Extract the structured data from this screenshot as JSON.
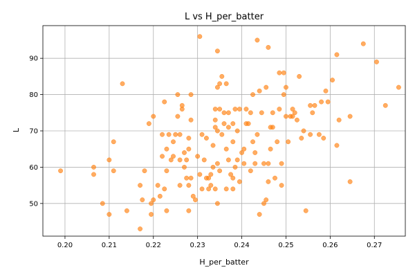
{
  "chart_data": {
    "type": "scatter",
    "title": "L vs H_per_batter",
    "xlabel": "H_per_batter",
    "ylabel": "L",
    "xlim": [
      0.195,
      0.277
    ],
    "ylim": [
      41,
      99
    ],
    "xticks": [
      "0.20",
      "0.21",
      "0.22",
      "0.23",
      "0.24",
      "0.25",
      "0.26",
      "0.27"
    ],
    "xtick_values": [
      0.2,
      0.21,
      0.22,
      0.23,
      0.24,
      0.25,
      0.26,
      0.27
    ],
    "yticks": [
      "50",
      "60",
      "70",
      "80",
      "90"
    ],
    "ytick_values": [
      50,
      60,
      70,
      80,
      90
    ],
    "grid": true,
    "marker_color": "#ff7f0e",
    "points": [
      [
        0.199,
        59
      ],
      [
        0.2065,
        58
      ],
      [
        0.2065,
        60
      ],
      [
        0.2085,
        50
      ],
      [
        0.21,
        47
      ],
      [
        0.21,
        62
      ],
      [
        0.211,
        59
      ],
      [
        0.211,
        67
      ],
      [
        0.213,
        83
      ],
      [
        0.214,
        48
      ],
      [
        0.217,
        43
      ],
      [
        0.217,
        55
      ],
      [
        0.2175,
        51
      ],
      [
        0.218,
        59
      ],
      [
        0.219,
        72
      ],
      [
        0.2195,
        47
      ],
      [
        0.2195,
        50
      ],
      [
        0.22,
        51
      ],
      [
        0.22,
        74
      ],
      [
        0.221,
        55
      ],
      [
        0.2215,
        52
      ],
      [
        0.222,
        63
      ],
      [
        0.222,
        69
      ],
      [
        0.2225,
        54
      ],
      [
        0.2225,
        78
      ],
      [
        0.223,
        48
      ],
      [
        0.223,
        65
      ],
      [
        0.223,
        59
      ],
      [
        0.2235,
        69
      ],
      [
        0.224,
        62
      ],
      [
        0.2245,
        63
      ],
      [
        0.2245,
        67
      ],
      [
        0.225,
        69
      ],
      [
        0.2255,
        74
      ],
      [
        0.2255,
        80
      ],
      [
        0.226,
        55
      ],
      [
        0.226,
        62
      ],
      [
        0.226,
        69
      ],
      [
        0.2265,
        76
      ],
      [
        0.2265,
        77
      ],
      [
        0.227,
        60
      ],
      [
        0.227,
        64
      ],
      [
        0.2275,
        57
      ],
      [
        0.2275,
        62
      ],
      [
        0.228,
        55
      ],
      [
        0.228,
        65
      ],
      [
        0.228,
        68
      ],
      [
        0.2285,
        80
      ],
      [
        0.228,
        48
      ],
      [
        0.229,
        52
      ],
      [
        0.2285,
        57
      ],
      [
        0.2285,
        73
      ],
      [
        0.2295,
        51
      ],
      [
        0.23,
        63
      ],
      [
        0.2305,
        96
      ],
      [
        0.231,
        54
      ],
      [
        0.2305,
        58
      ],
      [
        0.231,
        69
      ],
      [
        0.2315,
        62
      ],
      [
        0.232,
        57
      ],
      [
        0.232,
        68
      ],
      [
        0.2325,
        54
      ],
      [
        0.2325,
        57
      ],
      [
        0.233,
        55
      ],
      [
        0.233,
        58
      ],
      [
        0.2335,
        60
      ],
      [
        0.2335,
        66
      ],
      [
        0.234,
        54
      ],
      [
        0.234,
        71
      ],
      [
        0.234,
        73
      ],
      [
        0.234,
        76
      ],
      [
        0.2345,
        50
      ],
      [
        0.2345,
        61
      ],
      [
        0.2345,
        70
      ],
      [
        0.2345,
        82
      ],
      [
        0.2345,
        92
      ],
      [
        0.235,
        59
      ],
      [
        0.235,
        83
      ],
      [
        0.235,
        76
      ],
      [
        0.2355,
        69
      ],
      [
        0.236,
        72
      ],
      [
        0.236,
        75
      ],
      [
        0.2355,
        85
      ],
      [
        0.2365,
        54
      ],
      [
        0.237,
        62
      ],
      [
        0.2365,
        65
      ],
      [
        0.237,
        71
      ],
      [
        0.2365,
        83
      ],
      [
        0.237,
        75
      ],
      [
        0.2375,
        58
      ],
      [
        0.238,
        54
      ],
      [
        0.238,
        57
      ],
      [
        0.2385,
        60
      ],
      [
        0.238,
        67
      ],
      [
        0.238,
        72
      ],
      [
        0.2385,
        76
      ],
      [
        0.239,
        70
      ],
      [
        0.239,
        62
      ],
      [
        0.2395,
        56
      ],
      [
        0.24,
        64
      ],
      [
        0.2395,
        76
      ],
      [
        0.2405,
        61
      ],
      [
        0.2405,
        65
      ],
      [
        0.241,
        72
      ],
      [
        0.241,
        76
      ],
      [
        0.2415,
        72
      ],
      [
        0.242,
        75
      ],
      [
        0.2425,
        80
      ],
      [
        0.242,
        59
      ],
      [
        0.2425,
        67
      ],
      [
        0.2435,
        95
      ],
      [
        0.243,
        61
      ],
      [
        0.243,
        64
      ],
      [
        0.2435,
        69
      ],
      [
        0.244,
        81
      ],
      [
        0.244,
        47
      ],
      [
        0.2445,
        75
      ],
      [
        0.245,
        61
      ],
      [
        0.2455,
        82
      ],
      [
        0.245,
        50
      ],
      [
        0.2455,
        51
      ],
      [
        0.246,
        56
      ],
      [
        0.246,
        61
      ],
      [
        0.246,
        93
      ],
      [
        0.2465,
        71
      ],
      [
        0.2465,
        65
      ],
      [
        0.247,
        75
      ],
      [
        0.247,
        71
      ],
      [
        0.2475,
        57
      ],
      [
        0.248,
        67
      ],
      [
        0.2485,
        76
      ],
      [
        0.249,
        61
      ],
      [
        0.2485,
        86
      ],
      [
        0.249,
        55
      ],
      [
        0.2495,
        80
      ],
      [
        0.25,
        74
      ],
      [
        0.25,
        82
      ],
      [
        0.2495,
        86
      ],
      [
        0.2505,
        67
      ],
      [
        0.251,
        74
      ],
      [
        0.2515,
        76
      ],
      [
        0.2515,
        74
      ],
      [
        0.252,
        75
      ],
      [
        0.2525,
        73
      ],
      [
        0.253,
        85
      ],
      [
        0.2535,
        68
      ],
      [
        0.254,
        70
      ],
      [
        0.2545,
        48
      ],
      [
        0.2555,
        77
      ],
      [
        0.2555,
        69
      ],
      [
        0.256,
        75
      ],
      [
        0.2565,
        77
      ],
      [
        0.2575,
        69
      ],
      [
        0.258,
        78
      ],
      [
        0.2585,
        68
      ],
      [
        0.259,
        81
      ],
      [
        0.2595,
        78
      ],
      [
        0.2605,
        84
      ],
      [
        0.2615,
        66
      ],
      [
        0.2615,
        91
      ],
      [
        0.262,
        73
      ],
      [
        0.2645,
        56
      ],
      [
        0.2645,
        74
      ],
      [
        0.2675,
        94
      ],
      [
        0.2705,
        89
      ],
      [
        0.2725,
        77
      ],
      [
        0.2755,
        82
      ]
    ]
  }
}
